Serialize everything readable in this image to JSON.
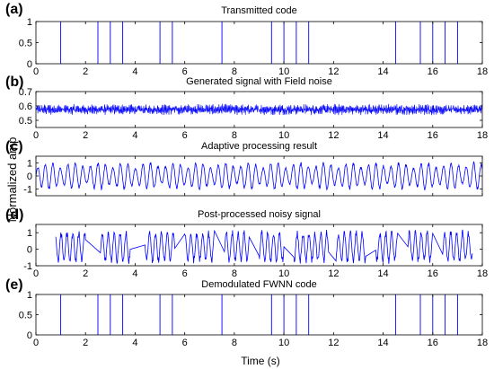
{
  "figure": {
    "ylabel": "Normalized amp",
    "xlabel": "Time (s)"
  },
  "colors": {
    "signal": "#0000ff",
    "axis": "#000000",
    "background": "#ffffff"
  },
  "chart_data": [
    {
      "type": "line",
      "panel": "(a)",
      "title": "Transmitted code",
      "xlim": [
        0,
        18
      ],
      "ylim": [
        0,
        1
      ],
      "xticks": [
        0,
        2,
        4,
        6,
        8,
        10,
        12,
        14,
        16,
        18
      ],
      "yticks": [
        0,
        0.5,
        1
      ],
      "ytick_labels": [
        "0",
        "0.5",
        "1"
      ],
      "show_xtick_labels": true,
      "signal": "pulses",
      "pulses": [
        1.0,
        2.5,
        3.0,
        3.5,
        5.0,
        5.5,
        7.5,
        9.5,
        10.0,
        10.5,
        11.0,
        14.5,
        15.5,
        16.0,
        16.5,
        17.0
      ]
    },
    {
      "type": "line",
      "panel": "(b)",
      "title": "Generated signal with Field noise",
      "xlim": [
        0,
        18
      ],
      "ylim": [
        0.45,
        0.7
      ],
      "xticks": [
        0,
        2,
        4,
        6,
        8,
        10,
        12,
        14,
        16,
        18
      ],
      "yticks": [
        0.5,
        0.6,
        0.7
      ],
      "ytick_labels": [
        "0.5",
        "0.6",
        "0.7"
      ],
      "show_xtick_labels": true,
      "signal": "noise",
      "center": 0.575,
      "amplitude": 0.035
    },
    {
      "type": "line",
      "panel": "(c)",
      "title": "Adaptive processing result",
      "xlim": [
        0,
        18
      ],
      "ylim": [
        -1.5,
        1.5
      ],
      "xticks": [
        0,
        2,
        4,
        6,
        8,
        10,
        12,
        14,
        16,
        18
      ],
      "yticks": [
        -1,
        0,
        1
      ],
      "ytick_labels": [
        "-1",
        "0",
        "1"
      ],
      "show_xtick_labels": false,
      "signal": "oscillation",
      "amplitude": 1.1
    },
    {
      "type": "line",
      "panel": "(d)",
      "title": "Post-processed noisy signal",
      "xlim": [
        0,
        18
      ],
      "ylim": [
        -1,
        1.5
      ],
      "xticks": [
        0,
        2,
        4,
        6,
        8,
        10,
        12,
        14,
        16,
        18
      ],
      "yticks": [
        -1,
        0,
        1
      ],
      "ytick_labels": [
        "-1",
        "0",
        "1"
      ],
      "show_xtick_labels": true,
      "signal": "bursts",
      "bursts": [
        [
          0.8,
          2.0
        ],
        [
          2.6,
          3.8
        ],
        [
          4.4,
          5.6
        ],
        [
          6.0,
          7.2
        ],
        [
          7.6,
          8.6
        ],
        [
          9.0,
          10.0
        ],
        [
          10.4,
          11.8
        ],
        [
          12.1,
          13.3
        ],
        [
          13.7,
          14.6
        ],
        [
          15.0,
          16.0
        ],
        [
          16.4,
          17.6
        ]
      ],
      "amplitude": 1.05
    },
    {
      "type": "line",
      "panel": "(e)",
      "title": "Demodulated FWNN code",
      "xlim": [
        0,
        18
      ],
      "ylim": [
        0,
        1
      ],
      "xticks": [
        0,
        2,
        4,
        6,
        8,
        10,
        12,
        14,
        16,
        18
      ],
      "yticks": [
        0,
        0.5,
        1
      ],
      "ytick_labels": [
        "0",
        "0.5",
        "1"
      ],
      "show_xtick_labels": true,
      "signal": "pulses",
      "pulses": [
        1.0,
        2.5,
        3.0,
        3.5,
        5.0,
        5.5,
        7.5,
        9.5,
        10.0,
        10.5,
        11.0,
        14.5,
        15.5,
        16.0,
        16.5,
        17.0
      ]
    }
  ]
}
